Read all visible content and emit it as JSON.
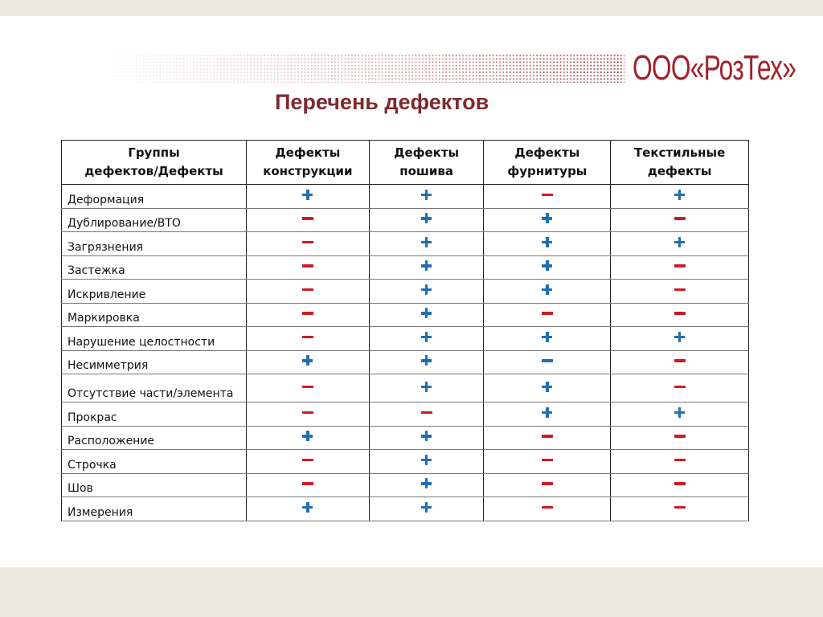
{
  "header": {
    "logo_text": "ООО«РозТех»",
    "title": "Перечень дефектов"
  },
  "colors": {
    "brand": "#a0222a",
    "title": "#7f2a2e",
    "plus": "#1f6fb2",
    "minus": "#cc1b22",
    "band": "#ebe9de"
  },
  "table": {
    "columns": [
      {
        "line1": "Группы",
        "line2": "дефектов/Дефекты"
      },
      {
        "line1": "Дефекты",
        "line2": "конструкции"
      },
      {
        "line1": "Дефекты",
        "line2": "пошива"
      },
      {
        "line1": "Дефекты",
        "line2": "фурнитуры"
      },
      {
        "line1": "Текстильные",
        "line2": "дефекты"
      }
    ],
    "rows": [
      {
        "name": "Деформация",
        "values": [
          "+",
          "+",
          "−",
          "+"
        ]
      },
      {
        "name": "Дублирование/ВТО",
        "values": [
          "−",
          "+",
          "+",
          "−"
        ]
      },
      {
        "name": "Загрязнения",
        "values": [
          "−",
          "+",
          "+",
          "+"
        ]
      },
      {
        "name": "Застежка",
        "values": [
          "−",
          "+",
          "+",
          "−"
        ]
      },
      {
        "name": "Искривление",
        "values": [
          "−",
          "+",
          "+",
          "−"
        ]
      },
      {
        "name": "Маркировка",
        "values": [
          "−",
          "+",
          "−",
          "−"
        ]
      },
      {
        "name": "Нарушение целостности",
        "values": [
          "−",
          "+",
          "+",
          "+"
        ]
      },
      {
        "name": "Несимметрия",
        "values": [
          "+",
          "+",
          "−*",
          "−"
        ]
      },
      {
        "name": "Отсутствие части/элемента",
        "values": [
          "−",
          "+",
          "+",
          "−"
        ]
      },
      {
        "name": "Прокрас",
        "values": [
          "−",
          "−",
          "+",
          "+"
        ]
      },
      {
        "name": "Расположение",
        "values": [
          "+",
          "+",
          "−",
          "−"
        ]
      },
      {
        "name": "Строчка",
        "values": [
          "−",
          "+",
          "−",
          "−"
        ]
      },
      {
        "name": "Шов",
        "values": [
          "−",
          "+",
          "−",
          "−"
        ]
      },
      {
        "name": "Измерения",
        "values": [
          "+",
          "+",
          "−",
          "−"
        ]
      }
    ],
    "legend": {
      "+": "plus-icon (blue)",
      "−": "minus-icon (red)",
      "−*": "minus-icon (blue)"
    }
  }
}
